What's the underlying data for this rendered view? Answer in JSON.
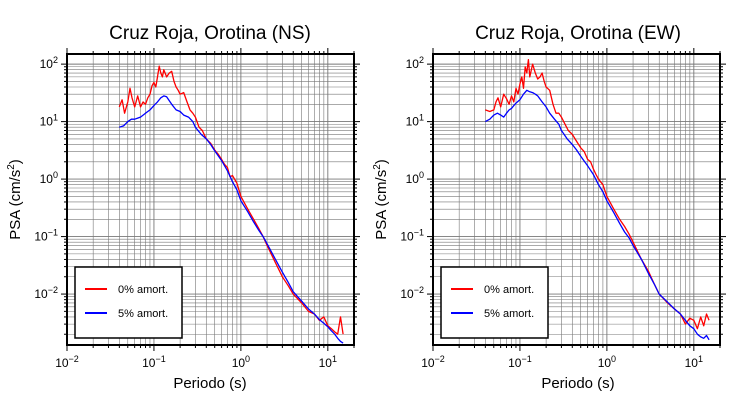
{
  "chart_data": [
    {
      "type": "line",
      "title": "Cruz Roja, Orotina (NS)",
      "xlabel": "Periodo (s)",
      "ylabel": "PSA (cm/s²)",
      "xscale": "log",
      "yscale": "log",
      "xlim": [
        0.01,
        20
      ],
      "ylim": [
        0.0013,
        150
      ],
      "grid": true,
      "legend": "bottom-left",
      "x_ticks": [
        {
          "base": "10",
          "exp": "−2"
        },
        {
          "base": "10",
          "exp": "−1"
        },
        {
          "base": "10",
          "exp": "0"
        },
        {
          "base": "10",
          "exp": "1"
        }
      ],
      "y_ticks": [
        {
          "base": "10",
          "exp": "−2"
        },
        {
          "base": "10",
          "exp": "−1"
        },
        {
          "base": "10",
          "exp": "0"
        },
        {
          "base": "10",
          "exp": "1"
        },
        {
          "base": "10",
          "exp": "2"
        }
      ],
      "series": [
        {
          "name": "0% amort.",
          "color": "#ff0000",
          "x": [
            0.04,
            0.043,
            0.046,
            0.05,
            0.053,
            0.056,
            0.06,
            0.065,
            0.07,
            0.075,
            0.08,
            0.085,
            0.09,
            0.095,
            0.1,
            0.105,
            0.11,
            0.115,
            0.12,
            0.125,
            0.13,
            0.14,
            0.15,
            0.16,
            0.17,
            0.18,
            0.19,
            0.2,
            0.22,
            0.24,
            0.26,
            0.28,
            0.3,
            0.33,
            0.36,
            0.4,
            0.45,
            0.5,
            0.55,
            0.6,
            0.65,
            0.7,
            0.75,
            0.8,
            0.9,
            1.0,
            1.2,
            1.4,
            1.6,
            1.8,
            2.0,
            2.5,
            3.0,
            3.5,
            4.0,
            5.0,
            6.0,
            7.0,
            8.0,
            9.0,
            10.0,
            11.0,
            12.0,
            13.0,
            14.0,
            15.0
          ],
          "values": [
            18,
            24,
            14,
            22,
            38,
            26,
            18,
            28,
            18,
            22,
            20,
            26,
            30,
            42,
            48,
            40,
            60,
            92,
            70,
            60,
            80,
            60,
            70,
            75,
            50,
            40,
            35,
            30,
            32,
            22,
            16,
            14,
            12,
            8,
            7,
            5,
            4.2,
            3.2,
            2.7,
            2.2,
            1.8,
            1.6,
            1.1,
            1.15,
            0.85,
            0.5,
            0.3,
            0.2,
            0.14,
            0.1,
            0.07,
            0.035,
            0.02,
            0.014,
            0.01,
            0.007,
            0.005,
            0.0045,
            0.0035,
            0.004,
            0.0028,
            0.0025,
            0.0022,
            0.002,
            0.004,
            0.002
          ]
        },
        {
          "name": "5% amort.",
          "color": "#0000ff",
          "x": [
            0.04,
            0.045,
            0.05,
            0.055,
            0.06,
            0.065,
            0.07,
            0.075,
            0.08,
            0.085,
            0.09,
            0.1,
            0.11,
            0.12,
            0.13,
            0.14,
            0.15,
            0.16,
            0.18,
            0.2,
            0.22,
            0.25,
            0.28,
            0.3,
            0.35,
            0.4,
            0.45,
            0.5,
            0.6,
            0.7,
            0.8,
            0.9,
            1.0,
            1.2,
            1.4,
            1.6,
            1.8,
            2.0,
            2.5,
            3.0,
            3.5,
            4.0,
            5.0,
            6.0,
            7.0,
            8.0,
            9.0,
            10.0,
            11.0,
            12.0,
            13.0,
            14.0,
            15.0
          ],
          "values": [
            8,
            8.5,
            10,
            11,
            11,
            11.5,
            12,
            13,
            14,
            15,
            16,
            19,
            22,
            26,
            28,
            27,
            23,
            20,
            16,
            15,
            13,
            12,
            10,
            8,
            6,
            5,
            4,
            3.1,
            2.1,
            1.4,
            0.9,
            0.65,
            0.42,
            0.27,
            0.18,
            0.13,
            0.1,
            0.075,
            0.04,
            0.024,
            0.016,
            0.011,
            0.0075,
            0.0055,
            0.0045,
            0.0036,
            0.0031,
            0.0027,
            0.0023,
            0.002,
            0.0017,
            0.0015,
            0.0014
          ]
        }
      ]
    },
    {
      "type": "line",
      "title": "Cruz Roja, Orotina (EW)",
      "xlabel": "Periodo (s)",
      "ylabel": "PSA (cm/s²)",
      "xscale": "log",
      "yscale": "log",
      "xlim": [
        0.01,
        20
      ],
      "ylim": [
        0.0013,
        150
      ],
      "grid": true,
      "legend": "bottom-left",
      "x_ticks": [
        {
          "base": "10",
          "exp": "−2"
        },
        {
          "base": "10",
          "exp": "−1"
        },
        {
          "base": "10",
          "exp": "0"
        },
        {
          "base": "10",
          "exp": "1"
        }
      ],
      "y_ticks": [
        {
          "base": "10",
          "exp": "−2"
        },
        {
          "base": "10",
          "exp": "−1"
        },
        {
          "base": "10",
          "exp": "0"
        },
        {
          "base": "10",
          "exp": "1"
        },
        {
          "base": "10",
          "exp": "2"
        }
      ],
      "series": [
        {
          "name": "0% amort.",
          "color": "#ff0000",
          "x": [
            0.04,
            0.045,
            0.05,
            0.053,
            0.056,
            0.06,
            0.065,
            0.07,
            0.075,
            0.08,
            0.085,
            0.09,
            0.095,
            0.1,
            0.105,
            0.11,
            0.115,
            0.12,
            0.125,
            0.13,
            0.14,
            0.15,
            0.16,
            0.17,
            0.18,
            0.19,
            0.2,
            0.22,
            0.24,
            0.26,
            0.28,
            0.3,
            0.33,
            0.36,
            0.4,
            0.45,
            0.5,
            0.55,
            0.6,
            0.65,
            0.7,
            0.75,
            0.8,
            0.9,
            1.0,
            1.2,
            1.4,
            1.6,
            1.8,
            2.0,
            2.5,
            3.0,
            3.5,
            4.0,
            5.0,
            6.0,
            7.0,
            8.0,
            9.0,
            10.0,
            11.0,
            12.0,
            13.0,
            14.0,
            15.0
          ],
          "values": [
            16,
            15,
            16,
            22,
            26,
            18,
            30,
            25,
            20,
            28,
            22,
            38,
            30,
            45,
            60,
            38,
            90,
            70,
            120,
            60,
            100,
            70,
            55,
            60,
            70,
            50,
            40,
            35,
            20,
            14,
            14,
            12,
            9,
            7,
            6,
            4.5,
            3.5,
            3,
            2.2,
            2.0,
            1.5,
            1.2,
            1.0,
            0.8,
            0.5,
            0.3,
            0.2,
            0.15,
            0.11,
            0.08,
            0.04,
            0.025,
            0.015,
            0.01,
            0.007,
            0.0055,
            0.0045,
            0.003,
            0.0038,
            0.0035,
            0.0025,
            0.004,
            0.0028,
            0.0045,
            0.0035
          ]
        },
        {
          "name": "5% amort.",
          "color": "#0000ff",
          "x": [
            0.04,
            0.045,
            0.05,
            0.055,
            0.06,
            0.065,
            0.07,
            0.075,
            0.08,
            0.085,
            0.09,
            0.1,
            0.11,
            0.12,
            0.13,
            0.14,
            0.15,
            0.16,
            0.18,
            0.2,
            0.22,
            0.25,
            0.28,
            0.3,
            0.35,
            0.4,
            0.45,
            0.5,
            0.6,
            0.7,
            0.8,
            0.9,
            1.0,
            1.2,
            1.4,
            1.6,
            1.8,
            2.0,
            2.5,
            3.0,
            3.5,
            4.0,
            5.0,
            6.0,
            7.0,
            8.0,
            9.0,
            10.0,
            11.0,
            12.0,
            13.0,
            14.0,
            15.0
          ],
          "values": [
            10,
            11,
            13,
            14,
            13,
            12,
            14,
            16,
            17,
            19,
            21,
            24,
            30,
            35,
            33,
            32,
            30,
            28,
            22,
            18,
            14,
            11,
            9,
            7,
            5,
            4,
            3.2,
            2.5,
            1.7,
            1.2,
            0.8,
            0.6,
            0.42,
            0.26,
            0.17,
            0.12,
            0.095,
            0.07,
            0.04,
            0.023,
            0.015,
            0.01,
            0.0072,
            0.0055,
            0.0045,
            0.0035,
            0.0028,
            0.0025,
            0.002,
            0.0018,
            0.0017,
            0.0019,
            0.0016
          ]
        }
      ]
    }
  ]
}
